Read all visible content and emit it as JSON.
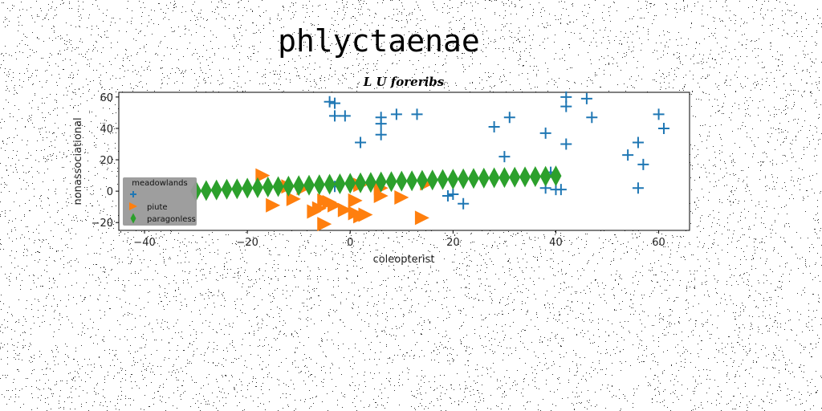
{
  "chart_data": {
    "type": "scatter",
    "suptitle": "phlyctaenae",
    "title": "L U foreribs",
    "xlabel": "coleopterist",
    "ylabel": "nonassociational",
    "xlim": [
      -45,
      66
    ],
    "ylim": [
      -25,
      63
    ],
    "xticks": [
      -40,
      -20,
      0,
      20,
      40,
      60
    ],
    "yticks": [
      -20,
      0,
      20,
      40,
      60
    ],
    "grid": false,
    "legend": {
      "title": "meadowlands",
      "placement": "lower-left"
    },
    "series": [
      {
        "name": "",
        "marker": "plus",
        "color": "#1f77b4",
        "points": [
          [
            -4,
            57
          ],
          [
            -3,
            56
          ],
          [
            -3,
            48
          ],
          [
            -1,
            48
          ],
          [
            2,
            31
          ],
          [
            6,
            47
          ],
          [
            6,
            43
          ],
          [
            6,
            36
          ],
          [
            9,
            49
          ],
          [
            13,
            49
          ],
          [
            28,
            41
          ],
          [
            30,
            22
          ],
          [
            31,
            47
          ],
          [
            38,
            37
          ],
          [
            39,
            12
          ],
          [
            40,
            1
          ],
          [
            41,
            1
          ],
          [
            42,
            60
          ],
          [
            42,
            54
          ],
          [
            42,
            30
          ],
          [
            46,
            59
          ],
          [
            47,
            47
          ],
          [
            54,
            23
          ],
          [
            56,
            31
          ],
          [
            56,
            2
          ],
          [
            57,
            17
          ],
          [
            60,
            49
          ],
          [
            61,
            40
          ],
          [
            19,
            -3
          ],
          [
            20,
            -2
          ],
          [
            22,
            -8
          ],
          [
            38,
            2
          ],
          [
            -3,
            3
          ]
        ]
      },
      {
        "name": "piute",
        "marker": "triangle-right",
        "color": "#ff7f0e",
        "points": [
          [
            -17,
            10
          ],
          [
            -15,
            -9
          ],
          [
            -12,
            3
          ],
          [
            -11,
            -5
          ],
          [
            -7,
            -13
          ],
          [
            -6,
            -11
          ],
          [
            -5,
            -6
          ],
          [
            -5,
            -21
          ],
          [
            -4,
            -7
          ],
          [
            -1,
            -12
          ],
          [
            1,
            -14
          ],
          [
            1,
            -6
          ],
          [
            2,
            -16
          ],
          [
            3,
            -15
          ],
          [
            6,
            2
          ],
          [
            6,
            -3
          ],
          [
            10,
            -4
          ],
          [
            14,
            -17
          ],
          [
            15,
            5
          ],
          [
            -9,
            2
          ],
          [
            -3,
            -9
          ],
          [
            2,
            4
          ]
        ]
      },
      {
        "name": "paragonless",
        "marker": "thin-diamond",
        "color": "#2ca02c",
        "points": [
          [
            -30,
            0
          ],
          [
            -28,
            0.4
          ],
          [
            -26,
            0.8
          ],
          [
            -24,
            1.2
          ],
          [
            -22,
            1.5
          ],
          [
            -20,
            1.9
          ],
          [
            -18,
            2.2
          ],
          [
            -16,
            2.6
          ],
          [
            -14,
            2.9
          ],
          [
            -12,
            3.2
          ],
          [
            -10,
            3.5
          ],
          [
            -8,
            3.8
          ],
          [
            -6,
            4.1
          ],
          [
            -4,
            4.4
          ],
          [
            -2,
            4.7
          ],
          [
            0,
            5
          ],
          [
            2,
            5.3
          ],
          [
            4,
            5.6
          ],
          [
            6,
            5.9
          ],
          [
            8,
            6.1
          ],
          [
            10,
            6.4
          ],
          [
            12,
            6.6
          ],
          [
            14,
            6.9
          ],
          [
            16,
            7.1
          ],
          [
            18,
            7.4
          ],
          [
            20,
            7.6
          ],
          [
            22,
            7.9
          ],
          [
            24,
            8.1
          ],
          [
            26,
            8.3
          ],
          [
            28,
            8.5
          ],
          [
            30,
            8.7
          ],
          [
            32,
            8.9
          ],
          [
            34,
            9.1
          ],
          [
            36,
            9.3
          ],
          [
            38,
            9.5
          ],
          [
            40,
            9.7
          ]
        ]
      }
    ]
  }
}
